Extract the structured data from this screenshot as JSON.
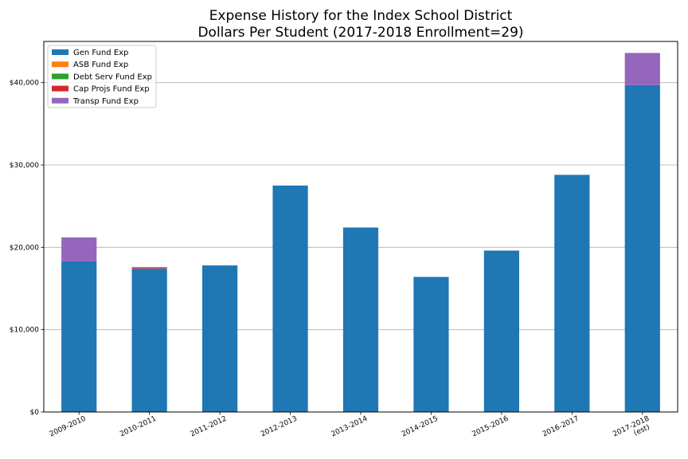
{
  "chart_data": {
    "type": "bar",
    "stacked": true,
    "title": "Expense History for the Index School District",
    "subtitle": "Dollars Per Student (2017-2018 Enrollment=29)",
    "xlabel": "",
    "ylabel": "",
    "ylim": [
      0,
      45000
    ],
    "y_ticks": [
      0,
      10000,
      20000,
      30000,
      40000
    ],
    "y_tick_labels": [
      "$0",
      "$10,000",
      "$20,000",
      "$30,000",
      "$40,000"
    ],
    "grid": "horizontal",
    "legend_position": "top-left",
    "categories": [
      "2009-2010",
      "2010-2011",
      "2011-2012",
      "2012-2013",
      "2013-2014",
      "2014-2015",
      "2015-2016",
      "2016-2017",
      "2017-2018\n(est)"
    ],
    "series": [
      {
        "name": "Gen Fund Exp",
        "color": "#1f77b4",
        "values": [
          18300,
          17400,
          17800,
          27500,
          22400,
          16400,
          19600,
          28800,
          39700
        ]
      },
      {
        "name": "ASB Fund Exp",
        "color": "#ff7f0e",
        "values": [
          0,
          0,
          0,
          0,
          0,
          0,
          0,
          0,
          0
        ]
      },
      {
        "name": "Debt Serv Fund Exp",
        "color": "#2ca02c",
        "values": [
          0,
          0,
          0,
          0,
          0,
          0,
          0,
          0,
          0
        ]
      },
      {
        "name": "Cap Projs Fund Exp",
        "color": "#d62728",
        "values": [
          0,
          100,
          0,
          0,
          0,
          0,
          0,
          0,
          0
        ]
      },
      {
        "name": "Transp Fund Exp",
        "color": "#9467bd",
        "values": [
          2900,
          100,
          0,
          0,
          0,
          0,
          0,
          0,
          3900
        ]
      }
    ]
  }
}
